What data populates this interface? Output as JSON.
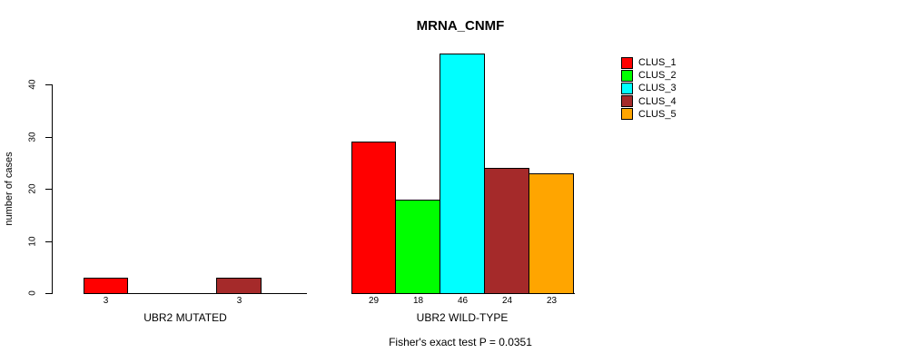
{
  "chart_data": {
    "type": "bar",
    "title": "MRNA_CNMF",
    "ylabel": "number of cases",
    "xlabel": "",
    "yticks": [
      0,
      10,
      20,
      30,
      40
    ],
    "ylim": [
      0,
      46
    ],
    "grid": false,
    "legend_position": "right",
    "clusters": [
      {
        "label": "CLUS_1",
        "color": "#FF0000"
      },
      {
        "label": "CLUS_2",
        "color": "#00FF00"
      },
      {
        "label": "CLUS_3",
        "color": "#00FFFF"
      },
      {
        "label": "CLUS_4",
        "color": "#A52A2A"
      },
      {
        "label": "CLUS_5",
        "color": "#FFA500"
      }
    ],
    "groups": [
      {
        "label": "UBR2 MUTATED",
        "values": [
          3,
          0,
          0,
          3,
          0
        ]
      },
      {
        "label": "UBR2 WILD-TYPE",
        "values": [
          29,
          18,
          46,
          24,
          23
        ]
      }
    ],
    "bar_value_labels_shown_for_nonzero_only": true,
    "footnote": "Fisher's exact test P = 0.0351"
  }
}
